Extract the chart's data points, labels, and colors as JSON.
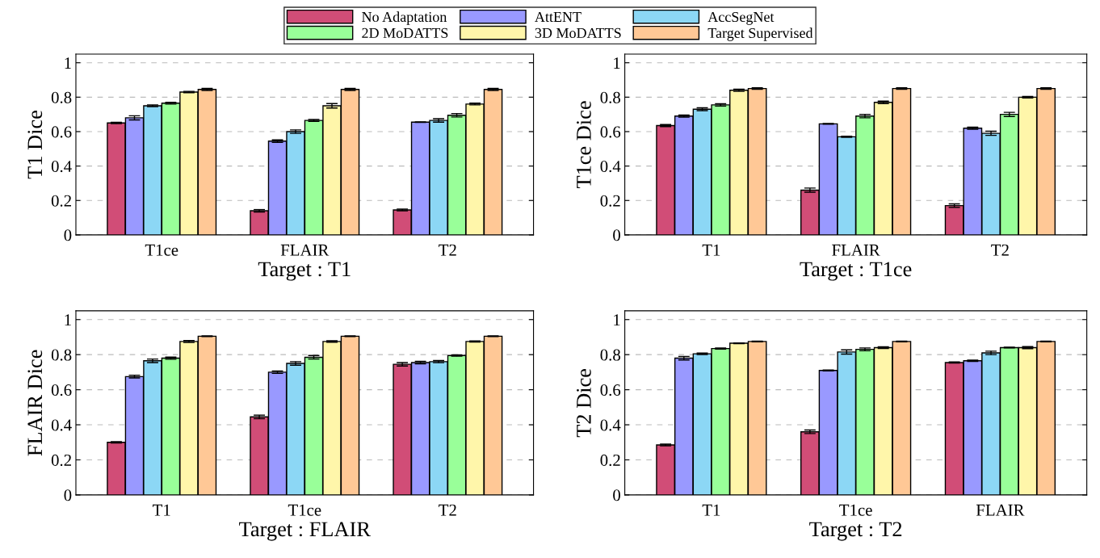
{
  "chart_data": [
    {
      "type": "bar",
      "ylabel": "T1 Dice",
      "xlabel": "Target : T1",
      "categories": [
        "T1ce",
        "FLAIR",
        "T2"
      ],
      "ylim": [
        0,
        1.05
      ],
      "yticks": [
        0,
        0.2,
        0.4,
        0.6,
        0.8,
        1
      ],
      "grid": "y",
      "legend": "top",
      "series": [
        {
          "name": "No Adaptation",
          "color": "#d14d77",
          "values": [
            0.65,
            0.14,
            0.145
          ],
          "errors": [
            0.004,
            0.007,
            0.005
          ]
        },
        {
          "name": "AttENT",
          "color": "#9999ff",
          "values": [
            0.68,
            0.545,
            0.655
          ],
          "errors": [
            0.012,
            0.007,
            0.002
          ]
        },
        {
          "name": "AccSegNet",
          "color": "#8cd7f5",
          "values": [
            0.75,
            0.6,
            0.665
          ],
          "errors": [
            0.005,
            0.01,
            0.01
          ]
        },
        {
          "name": "2D MoDATTS",
          "color": "#99ff99",
          "values": [
            0.765,
            0.665,
            0.695
          ],
          "errors": [
            0.005,
            0.005,
            0.01
          ]
        },
        {
          "name": "3D MoDATTS",
          "color": "#fff6aa",
          "values": [
            0.83,
            0.75,
            0.76
          ],
          "errors": [
            0.004,
            0.013,
            0.005
          ]
        },
        {
          "name": "Target Supervised",
          "color": "#ffc896",
          "values": [
            0.845,
            0.845,
            0.845
          ],
          "errors": [
            0.006,
            0.006,
            0.006
          ]
        }
      ]
    },
    {
      "type": "bar",
      "ylabel": "T1ce Dice",
      "xlabel": "Target : T1ce",
      "categories": [
        "T1",
        "FLAIR",
        "T2"
      ],
      "ylim": [
        0,
        1.05
      ],
      "yticks": [
        0,
        0.2,
        0.4,
        0.6,
        0.8,
        1
      ],
      "grid": "y",
      "series": [
        {
          "color": "#d14d77",
          "values": [
            0.635,
            0.26,
            0.17
          ],
          "errors": [
            0.006,
            0.012,
            0.01
          ]
        },
        {
          "color": "#9999ff",
          "values": [
            0.69,
            0.645,
            0.62
          ],
          "errors": [
            0.006,
            0.002,
            0.006
          ]
        },
        {
          "color": "#8cd7f5",
          "values": [
            0.73,
            0.57,
            0.59
          ],
          "errors": [
            0.008,
            0.003,
            0.012
          ]
        },
        {
          "color": "#99ff99",
          "values": [
            0.755,
            0.69,
            0.7
          ],
          "errors": [
            0.007,
            0.01,
            0.012
          ]
        },
        {
          "color": "#fff6aa",
          "values": [
            0.84,
            0.77,
            0.8
          ],
          "errors": [
            0.006,
            0.007,
            0.004
          ]
        },
        {
          "color": "#ffc896",
          "values": [
            0.85,
            0.85,
            0.85
          ],
          "errors": [
            0.004,
            0.004,
            0.004
          ]
        }
      ]
    },
    {
      "type": "bar",
      "ylabel": "FLAIR Dice",
      "xlabel": "Target : FLAIR",
      "categories": [
        "T1",
        "T1ce",
        "T2"
      ],
      "ylim": [
        0,
        1.05
      ],
      "yticks": [
        0,
        0.2,
        0.4,
        0.6,
        0.8,
        1
      ],
      "grid": "y",
      "series": [
        {
          "color": "#d14d77",
          "values": [
            0.3,
            0.445,
            0.745
          ],
          "errors": [
            0.004,
            0.01,
            0.01
          ]
        },
        {
          "color": "#9999ff",
          "values": [
            0.675,
            0.7,
            0.755
          ],
          "errors": [
            0.008,
            0.007,
            0.007
          ]
        },
        {
          "color": "#8cd7f5",
          "values": [
            0.765,
            0.75,
            0.76
          ],
          "errors": [
            0.01,
            0.01,
            0.006
          ]
        },
        {
          "color": "#99ff99",
          "values": [
            0.78,
            0.785,
            0.795
          ],
          "errors": [
            0.006,
            0.01,
            0.004
          ]
        },
        {
          "color": "#fff6aa",
          "values": [
            0.875,
            0.875,
            0.875
          ],
          "errors": [
            0.005,
            0.004,
            0.003
          ]
        },
        {
          "color": "#ffc896",
          "values": [
            0.905,
            0.905,
            0.905
          ],
          "errors": [
            0.002,
            0.002,
            0.002
          ]
        }
      ]
    },
    {
      "type": "bar",
      "ylabel": "T2 Dice",
      "xlabel": "Target : T2",
      "categories": [
        "T1",
        "T1ce",
        "FLAIR"
      ],
      "ylim": [
        0,
        1.05
      ],
      "yticks": [
        0,
        0.2,
        0.4,
        0.6,
        0.8,
        1
      ],
      "grid": "y",
      "series": [
        {
          "color": "#d14d77",
          "values": [
            0.285,
            0.36,
            0.755
          ],
          "errors": [
            0.005,
            0.01,
            0.003
          ]
        },
        {
          "color": "#9999ff",
          "values": [
            0.78,
            0.71,
            0.765
          ],
          "errors": [
            0.01,
            0.003,
            0.004
          ]
        },
        {
          "color": "#8cd7f5",
          "values": [
            0.805,
            0.815,
            0.81
          ],
          "errors": [
            0.004,
            0.012,
            0.01
          ]
        },
        {
          "color": "#99ff99",
          "values": [
            0.835,
            0.83,
            0.84
          ],
          "errors": [
            0.003,
            0.008,
            0.002
          ]
        },
        {
          "color": "#fff6aa",
          "values": [
            0.865,
            0.84,
            0.84
          ],
          "errors": [
            0.002,
            0.005,
            0.006
          ]
        },
        {
          "color": "#ffc896",
          "values": [
            0.875,
            0.875,
            0.875
          ],
          "errors": [
            0.002,
            0.002,
            0.002
          ]
        }
      ]
    }
  ]
}
